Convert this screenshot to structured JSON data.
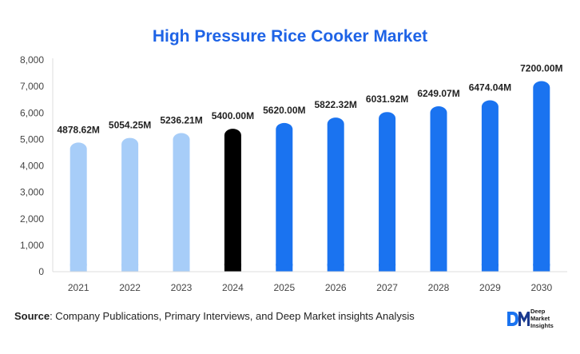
{
  "chart_data": {
    "type": "bar",
    "title": "High Pressure Rice Cooker Market",
    "xlabel": "",
    "ylabel": "",
    "categories": [
      "2021",
      "2022",
      "2023",
      "2024",
      "2025",
      "2026",
      "2027",
      "2028",
      "2029",
      "2030"
    ],
    "values": [
      4878.62,
      5054.25,
      5236.21,
      5400.0,
      5620.0,
      5822.32,
      6031.92,
      6249.07,
      6474.04,
      7200.0
    ],
    "data_labels": [
      "4878.62M",
      "5054.25M",
      "5236.21M",
      "5400.00M",
      "5620.00M",
      "5822.32M",
      "6031.92M",
      "6249.07M",
      "6474.04M",
      "7200.00M"
    ],
    "ylim": [
      0,
      8000
    ],
    "yticks": [
      0,
      1000,
      2000,
      3000,
      4000,
      5000,
      6000,
      7000,
      8000
    ],
    "ytick_labels": [
      "0",
      "1,000",
      "2,000",
      "3,000",
      "4,000",
      "5,000",
      "6,000",
      "7,000",
      "8,000"
    ],
    "grid": false,
    "legend": "none",
    "bar_colors": [
      "#a7cdf8",
      "#a7cdf8",
      "#a7cdf8",
      "#000000",
      "#1a73f0",
      "#1a73f0",
      "#1a73f0",
      "#1a73f0",
      "#1a73f0",
      "#1a73f0"
    ]
  },
  "colors": {
    "title": "#1e63e6",
    "historical": "#a7cdf8",
    "base_year": "#000000",
    "forecast": "#1a73f0",
    "axis": "#dddddd"
  },
  "footer": {
    "source_label": "Source",
    "source_text": ": Company Publications, Primary Interviews, and Deep Market insights Analysis"
  },
  "logo": {
    "mark": "DM",
    "line1": "Deep",
    "line2": "Market",
    "line3": "Insights"
  }
}
